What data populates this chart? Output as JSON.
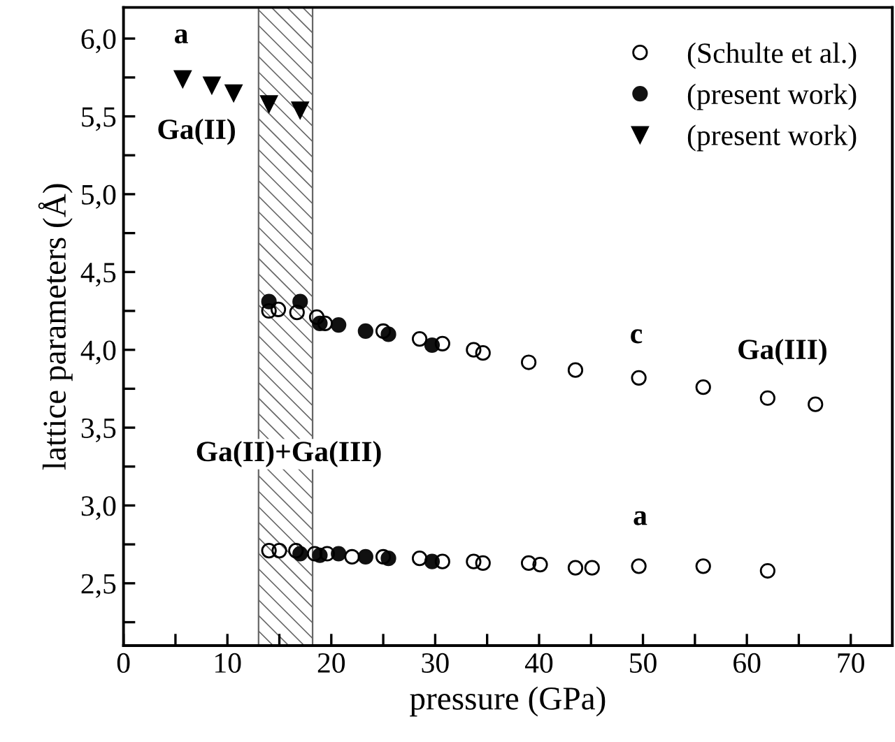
{
  "chart_data": {
    "type": "scatter",
    "xlabel": "pressure (GPa)",
    "ylabel": "lattice parameters (Å)",
    "xlim": [
      0,
      74
    ],
    "ylim": [
      2.1,
      6.2
    ],
    "xticks": [
      0,
      {
        "value": 5,
        "label": null
      },
      10,
      {
        "value": 15,
        "label": null
      },
      20,
      {
        "value": 25,
        "label": null
      },
      30,
      {
        "value": 35,
        "label": null
      },
      40,
      {
        "value": 45,
        "label": null
      },
      50,
      {
        "value": 55,
        "label": null
      },
      60,
      {
        "value": 65,
        "label": null
      },
      70
    ],
    "yticks": [
      {
        "value": 2.25,
        "label": null
      },
      {
        "value": 2.5,
        "label": "2,5"
      },
      {
        "value": 2.75,
        "label": null
      },
      {
        "value": 3.0,
        "label": "3,0"
      },
      {
        "value": 3.25,
        "label": null
      },
      {
        "value": 3.5,
        "label": "3,5"
      },
      {
        "value": 3.75,
        "label": null
      },
      {
        "value": 4.0,
        "label": "4,0"
      },
      {
        "value": 4.25,
        "label": null
      },
      {
        "value": 4.5,
        "label": "4,5"
      },
      {
        "value": 4.75,
        "label": null
      },
      {
        "value": 5.0,
        "label": "5,0"
      },
      {
        "value": 5.25,
        "label": null
      },
      {
        "value": 5.5,
        "label": "5,5"
      },
      {
        "value": 5.75,
        "label": null
      },
      {
        "value": 6.0,
        "label": "6,0"
      }
    ],
    "grid": false,
    "legend": "top right",
    "bands": [
      {
        "axis": "x",
        "from": 13,
        "to": 18.2,
        "color": "#666666"
      }
    ],
    "series": [
      {
        "name": "(Schulte et al.)",
        "color": "#000000",
        "marker": "circle",
        "x": [
          14.0,
          14.9,
          16.7,
          18.6,
          19.4,
          25.0,
          28.5,
          30.7,
          33.7,
          34.6,
          39.0,
          43.5,
          49.6,
          55.8,
          62.0,
          66.6,
          14.0,
          15.0,
          16.6,
          18.4,
          19.6,
          22.0,
          25.0,
          28.5,
          30.7,
          33.7,
          34.6,
          39.0,
          40.1,
          43.5,
          45.1,
          49.6,
          55.8,
          62.0
        ],
        "values": [
          4.25,
          4.26,
          4.24,
          4.21,
          4.17,
          4.12,
          4.07,
          4.04,
          4.0,
          3.98,
          3.92,
          3.87,
          3.82,
          3.76,
          3.69,
          3.65,
          2.71,
          2.71,
          2.71,
          2.69,
          2.69,
          2.67,
          2.67,
          2.66,
          2.64,
          2.64,
          2.63,
          2.63,
          2.62,
          2.6,
          2.6,
          2.61,
          2.61,
          2.58
        ]
      },
      {
        "name": "(present work)",
        "color": "#111111",
        "marker": "circle",
        "x": [
          14.0,
          17.0,
          18.9,
          20.7,
          23.3,
          25.5,
          29.7,
          17.0,
          18.9,
          20.7,
          23.3,
          25.5,
          29.7
        ],
        "values": [
          4.31,
          4.31,
          4.17,
          4.16,
          4.12,
          4.1,
          4.03,
          2.69,
          2.68,
          2.69,
          2.67,
          2.66,
          2.64
        ]
      },
      {
        "name": "(present work)",
        "color": "#000000",
        "marker": "triangle",
        "x": [
          5.7,
          8.5,
          10.6,
          14.0,
          17.0
        ],
        "values": [
          5.74,
          5.7,
          5.65,
          5.58,
          5.54
        ]
      }
    ],
    "annotations": [
      "a",
      "Ga(II)",
      "Ga(II)+Ga(III)",
      "c",
      "Ga(III)",
      "a"
    ]
  }
}
